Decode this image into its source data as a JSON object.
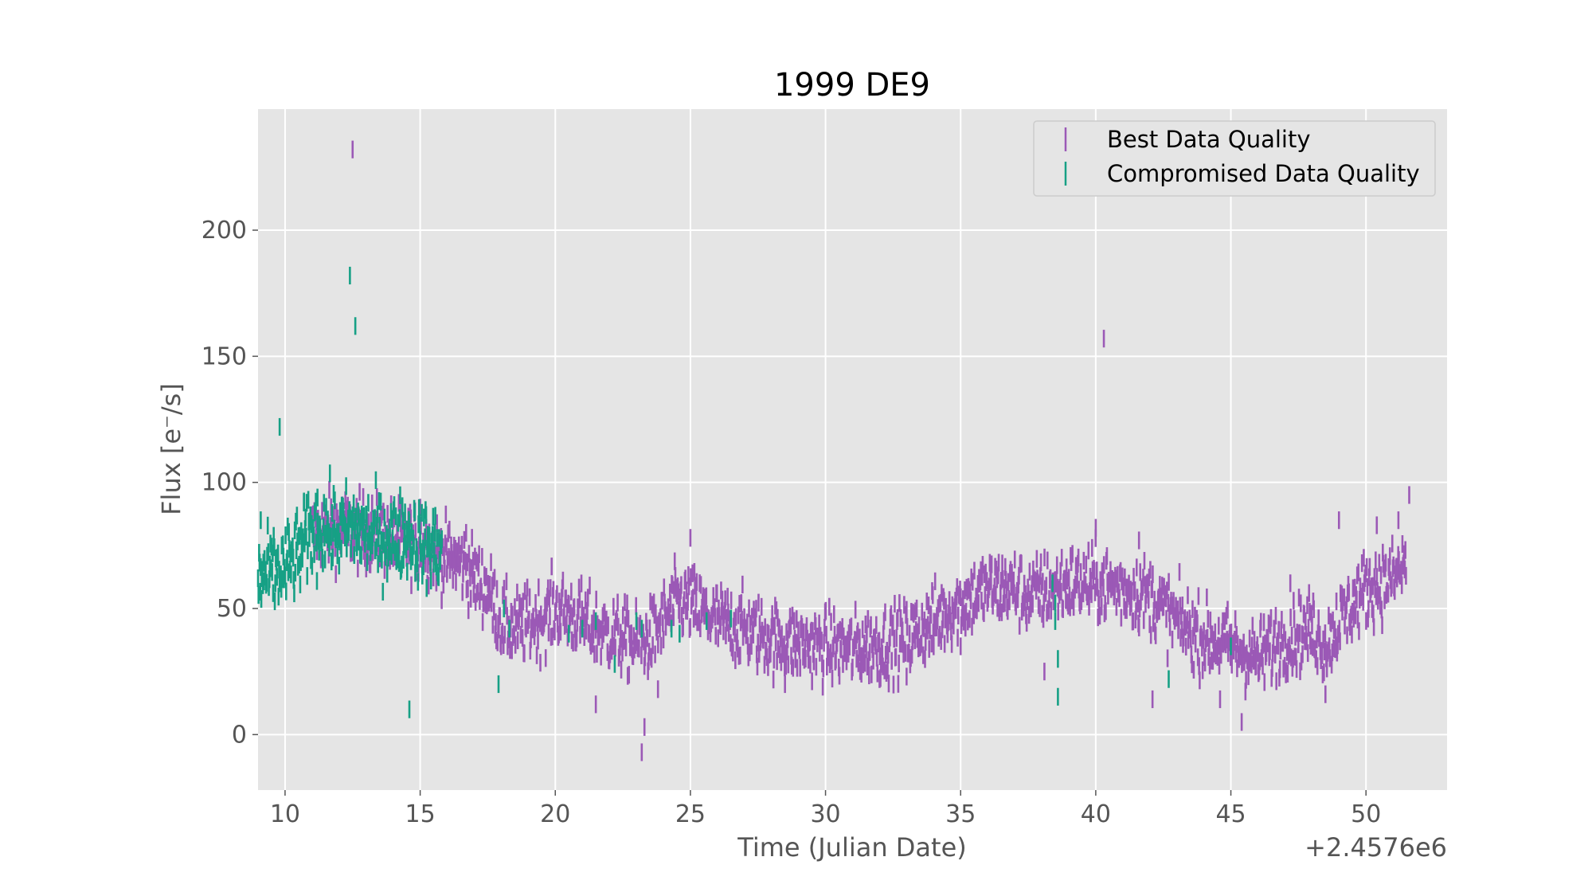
{
  "chart_data": {
    "type": "scatter",
    "title": "1999 DE9",
    "xlabel": "Time (Julian Date)",
    "ylabel": "Flux [e⁻/s]",
    "x_offset_label": "+2.4576e6",
    "xlim": [
      9,
      53
    ],
    "ylim": [
      -22,
      248
    ],
    "xticks": [
      10,
      15,
      20,
      25,
      30,
      35,
      40,
      45,
      50
    ],
    "xtick_labels": [
      "10",
      "15",
      "20",
      "25",
      "30",
      "35",
      "40",
      "45",
      "50"
    ],
    "yticks": [
      0,
      50,
      100,
      150,
      200
    ],
    "ytick_labels": [
      "0",
      "50",
      "100",
      "150",
      "200"
    ],
    "grid": true,
    "legend_position": "top-right",
    "error_bar_halfwidth": 3.5,
    "series": [
      {
        "name": "Best Data Quality",
        "color": "#9b59b6",
        "trend": [
          [
            11.0,
            80
          ],
          [
            12.0,
            82
          ],
          [
            13.0,
            80
          ],
          [
            14.0,
            78
          ],
          [
            15.0,
            76
          ],
          [
            16.0,
            70
          ],
          [
            16.6,
            68
          ],
          [
            17.0,
            62
          ],
          [
            17.5,
            58
          ],
          [
            18.0,
            45
          ],
          [
            18.5,
            42
          ],
          [
            19.0,
            44
          ],
          [
            19.5,
            46
          ],
          [
            20.0,
            50
          ],
          [
            20.5,
            48
          ],
          [
            21.0,
            45
          ],
          [
            21.5,
            42
          ],
          [
            22.0,
            40
          ],
          [
            22.5,
            38
          ],
          [
            23.0,
            36
          ],
          [
            23.5,
            38
          ],
          [
            24.0,
            45
          ],
          [
            24.5,
            53
          ],
          [
            25.0,
            52
          ],
          [
            25.5,
            48
          ],
          [
            26.0,
            45
          ],
          [
            27.0,
            42
          ],
          [
            28.0,
            38
          ],
          [
            29.0,
            36
          ],
          [
            30.0,
            35
          ],
          [
            31.0,
            34
          ],
          [
            32.0,
            36
          ],
          [
            33.0,
            38
          ],
          [
            34.0,
            45
          ],
          [
            35.0,
            52
          ],
          [
            36.0,
            58
          ],
          [
            37.0,
            58
          ],
          [
            37.5,
            55
          ],
          [
            38.0,
            57
          ],
          [
            39.0,
            60
          ],
          [
            40.0,
            60
          ],
          [
            41.0,
            58
          ],
          [
            42.0,
            55
          ],
          [
            42.5,
            50
          ],
          [
            43.0,
            45
          ],
          [
            44.0,
            38
          ],
          [
            45.0,
            35
          ],
          [
            46.0,
            30
          ],
          [
            46.5,
            35
          ],
          [
            47.0,
            38
          ],
          [
            48.0,
            42
          ],
          [
            48.5,
            35
          ],
          [
            49.0,
            45
          ],
          [
            50.0,
            58
          ],
          [
            50.5,
            60
          ],
          [
            51.0,
            62
          ],
          [
            51.5,
            68
          ]
        ],
        "spread": 7.0,
        "outliers": [
          [
            12.5,
            232
          ],
          [
            40.3,
            157
          ],
          [
            23.2,
            -7
          ],
          [
            23.3,
            3
          ],
          [
            21.5,
            12
          ],
          [
            23.8,
            18
          ],
          [
            25.0,
            78
          ],
          [
            40.0,
            82
          ],
          [
            41.6,
            77
          ],
          [
            45.4,
            5
          ],
          [
            44.6,
            14
          ],
          [
            48.5,
            16
          ],
          [
            49.0,
            85
          ],
          [
            51.6,
            95
          ],
          [
            51.2,
            85
          ],
          [
            50.4,
            83
          ],
          [
            47.2,
            60
          ],
          [
            42.1,
            14
          ],
          [
            38.1,
            25
          ],
          [
            28.5,
            20
          ],
          [
            32.0,
            22
          ],
          [
            33.0,
            23
          ],
          [
            34.0,
            35
          ],
          [
            35.0,
            35
          ],
          [
            14.0,
            70
          ],
          [
            15.0,
            90
          ],
          [
            16.7,
            80
          ]
        ]
      },
      {
        "name": "Compromised Data Quality",
        "color": "#16a085",
        "trend": [
          [
            9.0,
            62
          ],
          [
            9.5,
            64
          ],
          [
            10.0,
            66
          ],
          [
            10.5,
            72
          ],
          [
            11.0,
            80
          ],
          [
            11.5,
            82
          ],
          [
            12.0,
            80
          ],
          [
            12.5,
            82
          ],
          [
            13.0,
            80
          ],
          [
            13.5,
            78
          ],
          [
            14.0,
            78
          ],
          [
            14.5,
            80
          ],
          [
            15.0,
            76
          ],
          [
            15.5,
            74
          ],
          [
            15.8,
            72
          ]
        ],
        "spread": 8.0,
        "extra": [
          [
            18.1,
            50
          ],
          [
            18.3,
            42
          ],
          [
            17.9,
            20
          ],
          [
            20.5,
            40
          ],
          [
            21.0,
            42
          ],
          [
            21.5,
            45
          ],
          [
            22.2,
            28
          ],
          [
            23.0,
            45
          ],
          [
            23.2,
            42
          ],
          [
            24.3,
            42
          ],
          [
            24.6,
            40
          ],
          [
            25.6,
            45
          ],
          [
            26.5,
            46
          ],
          [
            38.4,
            60
          ],
          [
            38.5,
            52
          ],
          [
            38.5,
            45
          ],
          [
            38.6,
            30
          ],
          [
            38.6,
            15
          ],
          [
            42.7,
            22
          ],
          [
            45.0,
            35
          ]
        ],
        "outliers": [
          [
            12.4,
            182
          ],
          [
            12.6,
            162
          ],
          [
            9.8,
            122
          ],
          [
            14.6,
            10
          ],
          [
            10.7,
            92
          ],
          [
            11.2,
            94
          ],
          [
            9.1,
            85
          ]
        ]
      }
    ]
  }
}
